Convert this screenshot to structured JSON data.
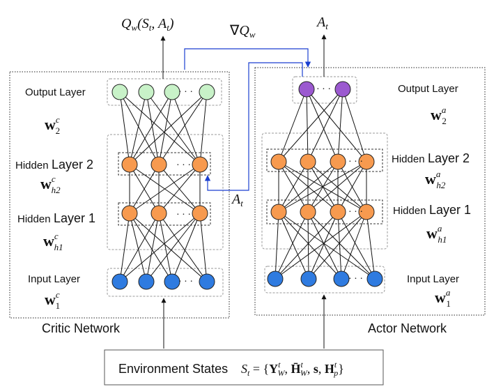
{
  "critic": {
    "network_label": "Critic Network",
    "output_layer_label": "Output Layer",
    "hidden2_label_prefix": "Hidden",
    "hidden2_label_suffix": "Layer 2",
    "hidden1_label_prefix": "Hidden",
    "hidden1_label_suffix": "Layer 1",
    "input_layer_label": "Input Layer",
    "w_output": {
      "base": "w",
      "sup": "c",
      "sub": "2"
    },
    "w_hidden2": {
      "base": "w",
      "sup": "c",
      "sub": "h2"
    },
    "w_hidden1": {
      "base": "w",
      "sup": "c",
      "sub": "h1"
    },
    "w_input": {
      "base": "w",
      "sup": "c",
      "sub": "1"
    },
    "output_label": "Q_w(S_t, A_t)"
  },
  "actor": {
    "network_label": "Actor Network",
    "output_layer_label": "Output Layer",
    "hidden2_label_prefix": "Hidden",
    "hidden2_label_suffix": "Layer 2",
    "hidden1_label_prefix": "Hidden",
    "hidden1_label_suffix": "Layer 1",
    "input_layer_label": "Input Layer",
    "w_output": {
      "base": "w",
      "sup": "a",
      "sub": "2"
    },
    "w_hidden2": {
      "base": "w",
      "sup": "a",
      "sub": "h2"
    },
    "w_hidden1": {
      "base": "w",
      "sup": "a",
      "sub": "h1"
    },
    "w_input": {
      "base": "w",
      "sup": "a",
      "sub": "1"
    },
    "output_label": "A_t"
  },
  "gradient_label": "∇Q_w",
  "action_feedback_label": "A_t",
  "environment": {
    "prefix": "Environment States",
    "formula": "S_t = {Y^t_W, H̄^t_W, s, H^t_p}"
  },
  "ellipsis": "· · ·",
  "colors": {
    "output_critic": "#c8f2c8",
    "output_actor": "#9b59d0",
    "hidden": "#f79a4f",
    "input": "#2f7be0",
    "feedback_arrow": "#1a3fd0"
  }
}
